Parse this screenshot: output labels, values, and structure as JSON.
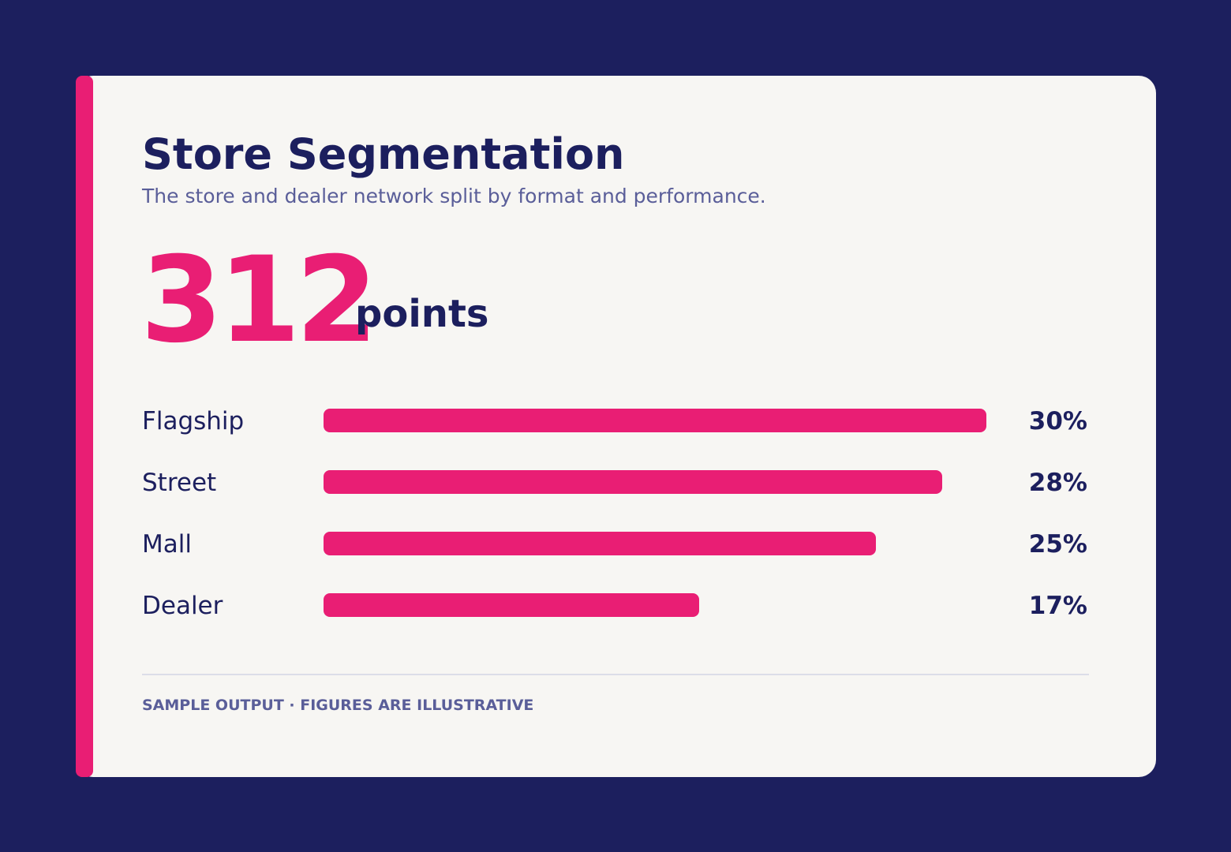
{
  "chart_data": {
    "type": "bar",
    "orientation": "horizontal",
    "title": "Store Segmentation",
    "subtitle": "The store and dealer network split by format and performance.",
    "kpi": {
      "value": "312",
      "unit": "points"
    },
    "categories": [
      "Flagship",
      "Street",
      "Mall",
      "Dealer"
    ],
    "values": [
      30,
      28,
      25,
      17
    ],
    "value_labels": [
      "30%",
      "28%",
      "25%",
      "17%"
    ],
    "color": "#e91e74",
    "footnote": "SAMPLE OUTPUT · FIGURES ARE ILLUSTRATIVE"
  }
}
